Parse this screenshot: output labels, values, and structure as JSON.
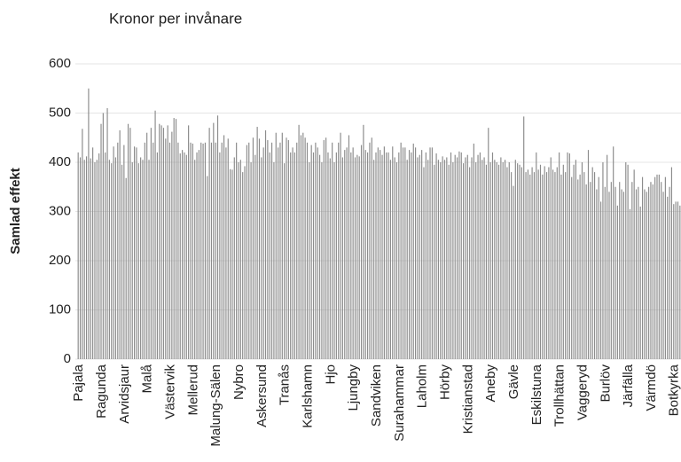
{
  "chart_data": {
    "type": "bar",
    "title": "Kronor per invånare",
    "y_label": "Samlad effekt",
    "categories": [
      "Pajala",
      null,
      null,
      null,
      null,
      null,
      null,
      null,
      null,
      null,
      null,
      "Ragunda",
      null,
      null,
      null,
      null,
      null,
      null,
      null,
      null,
      null,
      null,
      "Arvidsjaur",
      null,
      null,
      null,
      null,
      null,
      null,
      null,
      null,
      null,
      null,
      "Malå",
      null,
      null,
      null,
      null,
      null,
      null,
      null,
      null,
      null,
      null,
      "Västervik",
      null,
      null,
      null,
      null,
      null,
      null,
      null,
      null,
      null,
      null,
      "Mellerud",
      null,
      null,
      null,
      null,
      null,
      null,
      null,
      null,
      null,
      null,
      "Malung-Sälen",
      null,
      null,
      null,
      null,
      null,
      null,
      null,
      null,
      null,
      null,
      "Nybro",
      null,
      null,
      null,
      null,
      null,
      null,
      null,
      null,
      null,
      null,
      "Askersund",
      null,
      null,
      null,
      null,
      null,
      null,
      null,
      null,
      null,
      null,
      "Tranås",
      null,
      null,
      null,
      null,
      null,
      null,
      null,
      null,
      null,
      null,
      "Karlshamn",
      null,
      null,
      null,
      null,
      null,
      null,
      null,
      null,
      null,
      null,
      "Hjo",
      null,
      null,
      null,
      null,
      null,
      null,
      null,
      null,
      null,
      null,
      "Ljungby",
      null,
      null,
      null,
      null,
      null,
      null,
      null,
      null,
      null,
      null,
      "Sandviken",
      null,
      null,
      null,
      null,
      null,
      null,
      null,
      null,
      null,
      null,
      "Surahammar",
      null,
      null,
      null,
      null,
      null,
      null,
      null,
      null,
      null,
      null,
      "Laholm",
      null,
      null,
      null,
      null,
      null,
      null,
      null,
      null,
      null,
      null,
      "Hörby",
      null,
      null,
      null,
      null,
      null,
      null,
      null,
      null,
      null,
      null,
      "Kristianstad",
      null,
      null,
      null,
      null,
      null,
      null,
      null,
      null,
      null,
      null,
      "Aneby",
      null,
      null,
      null,
      null,
      null,
      null,
      null,
      null,
      null,
      null,
      "Gävle",
      null,
      null,
      null,
      null,
      null,
      null,
      null,
      null,
      null,
      null,
      "Eskilstuna",
      null,
      null,
      null,
      null,
      null,
      null,
      null,
      null,
      null,
      null,
      "Trollhättan",
      null,
      null,
      null,
      null,
      null,
      null,
      null,
      null,
      null,
      null,
      "Vaggeryd",
      null,
      null,
      null,
      null,
      null,
      null,
      null,
      null,
      null,
      null,
      "Burlöv",
      null,
      null,
      null,
      null,
      null,
      null,
      null,
      null,
      null,
      null,
      "Järfälla",
      null,
      null,
      null,
      null,
      null,
      null,
      null,
      null,
      null,
      null,
      "Värmdö",
      null,
      null,
      null,
      null,
      null,
      null,
      null,
      null,
      null,
      null,
      "Botkyrka",
      null,
      null,
      null
    ],
    "values": [
      420,
      410,
      468,
      405,
      412,
      550,
      408,
      430,
      400,
      405,
      418,
      478,
      500,
      420,
      510,
      405,
      398,
      432,
      410,
      440,
      465,
      395,
      435,
      368,
      478,
      470,
      400,
      432,
      430,
      398,
      410,
      405,
      440,
      460,
      405,
      470,
      440,
      505,
      420,
      478,
      475,
      470,
      448,
      475,
      440,
      462,
      490,
      488,
      440,
      418,
      425,
      420,
      415,
      475,
      440,
      438,
      405,
      420,
      425,
      440,
      438,
      440,
      372,
      470,
      440,
      480,
      440,
      495,
      420,
      440,
      455,
      430,
      448,
      386,
      385,
      410,
      440,
      400,
      405,
      380,
      392,
      435,
      440,
      400,
      450,
      415,
      472,
      448,
      410,
      430,
      465,
      445,
      420,
      440,
      400,
      460,
      430,
      440,
      460,
      398,
      450,
      445,
      420,
      430,
      420,
      440,
      476,
      455,
      460,
      450,
      440,
      400,
      435,
      420,
      440,
      430,
      415,
      400,
      445,
      450,
      420,
      408,
      440,
      400,
      420,
      440,
      460,
      410,
      425,
      430,
      455,
      420,
      430,
      410,
      415,
      412,
      435,
      476,
      425,
      420,
      440,
      450,
      405,
      420,
      430,
      425,
      415,
      432,
      420,
      420,
      405,
      432,
      410,
      400,
      420,
      440,
      430,
      430,
      405,
      425,
      420,
      438,
      430,
      410,
      415,
      425,
      390,
      420,
      405,
      430,
      430,
      395,
      418,
      405,
      400,
      412,
      405,
      410,
      395,
      420,
      400,
      415,
      410,
      422,
      420,
      398,
      410,
      415,
      390,
      410,
      438,
      400,
      415,
      420,
      405,
      410,
      395,
      470,
      400,
      420,
      405,
      400,
      395,
      410,
      400,
      405,
      390,
      400,
      380,
      352,
      405,
      398,
      395,
      390,
      493,
      380,
      385,
      375,
      390,
      380,
      420,
      385,
      395,
      375,
      392,
      380,
      390,
      410,
      385,
      380,
      390,
      420,
      375,
      395,
      380,
      420,
      418,
      370,
      395,
      405,
      365,
      375,
      400,
      380,
      355,
      425,
      360,
      390,
      380,
      345,
      370,
      320,
      400,
      350,
      415,
      340,
      360,
      432,
      350,
      312,
      360,
      345,
      340,
      400,
      395,
      305,
      360,
      385,
      345,
      350,
      310,
      370,
      345,
      340,
      350,
      360,
      355,
      370,
      375,
      375,
      360,
      340,
      370,
      330,
      350,
      390,
      315,
      320,
      320,
      312
    ],
    "color": "#8c8c8c",
    "ylim": [
      0,
      600
    ],
    "yticks": [
      0,
      100,
      200,
      300,
      400,
      500,
      600
    ],
    "grid": true
  }
}
